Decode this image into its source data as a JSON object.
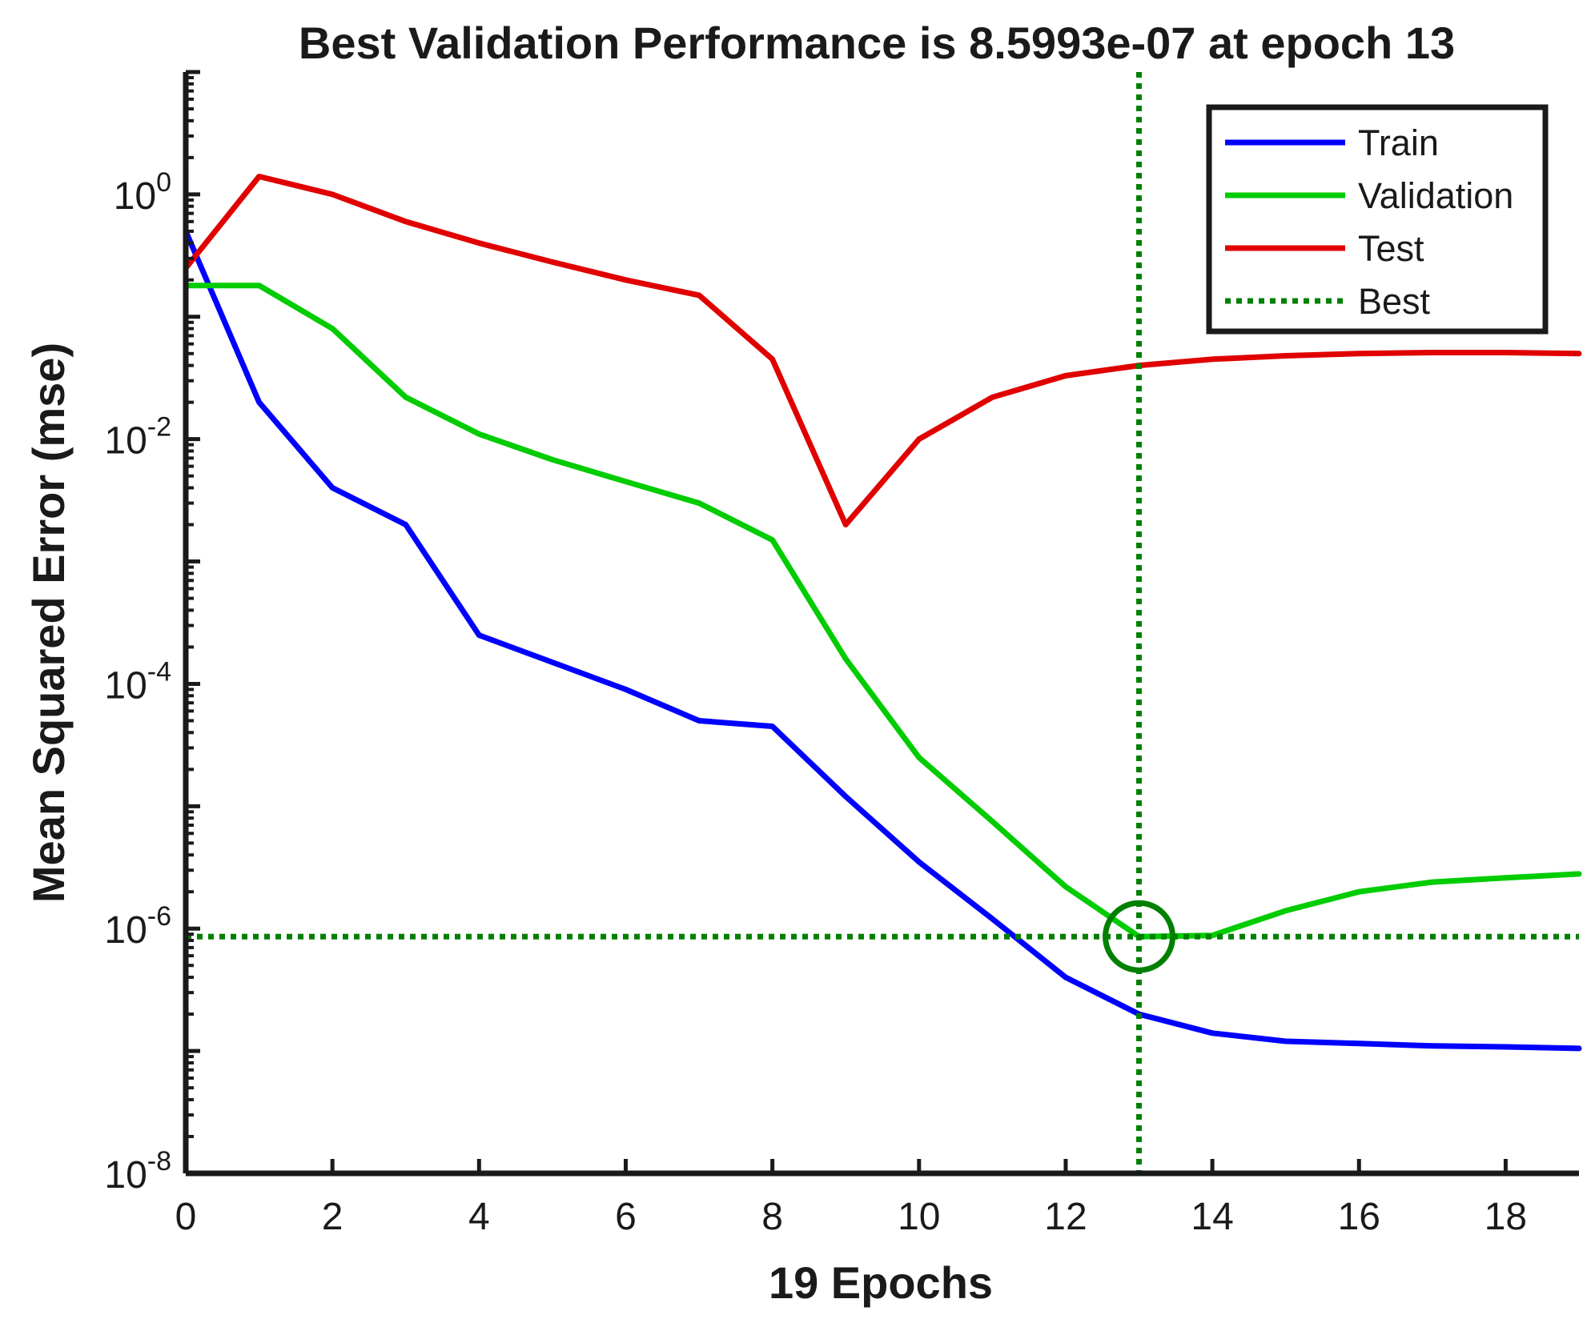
{
  "chart_data": {
    "type": "line",
    "title": "Best Validation Performance is 8.5993e-07 at epoch 13",
    "xlabel": "19 Epochs",
    "ylabel": "Mean Squared Error  (mse)",
    "yscale": "log",
    "xlim": [
      0,
      19
    ],
    "ylim": [
      1e-08,
      10
    ],
    "x_ticks": [
      0,
      2,
      4,
      6,
      8,
      10,
      12,
      14,
      16,
      18
    ],
    "y_ticks": [
      {
        "base": "10",
        "exp": "0"
      },
      {
        "base": "10",
        "exp": "-2"
      },
      {
        "base": "10",
        "exp": "-4"
      },
      {
        "base": "10",
        "exp": "-6"
      },
      {
        "base": "10",
        "exp": "-8"
      }
    ],
    "x": [
      0,
      1,
      2,
      3,
      4,
      5,
      6,
      7,
      8,
      9,
      10,
      11,
      12,
      13,
      14,
      15,
      16,
      17,
      18,
      19
    ],
    "series": [
      {
        "name": "Train",
        "color": "#0000ff",
        "values": [
          0.5,
          0.02,
          0.004,
          0.002,
          0.00025,
          0.00015,
          9e-05,
          5e-05,
          4.5e-05,
          1.2e-05,
          3.5e-06,
          1.2e-06,
          4e-07,
          2e-07,
          1.4e-07,
          1.2e-07,
          1.15e-07,
          1.1e-07,
          1.08e-07,
          1.05e-07
        ]
      },
      {
        "name": "Validation",
        "color": "#00cc00",
        "values": [
          0.18,
          0.18,
          0.08,
          0.022,
          0.011,
          0.0068,
          0.0045,
          0.003,
          0.0015,
          0.00016,
          2.5e-05,
          7.5e-06,
          2.2e-06,
          8.6e-07,
          8.8e-07,
          1.4e-06,
          2e-06,
          2.4e-06,
          2.6e-06,
          2.8e-06
        ]
      },
      {
        "name": "Test",
        "color": "#e00000",
        "values": [
          0.25,
          1.4,
          1.0,
          0.6,
          0.4,
          0.28,
          0.2,
          0.15,
          0.045,
          0.002,
          0.01,
          0.022,
          0.033,
          0.04,
          0.045,
          0.048,
          0.05,
          0.051,
          0.051,
          0.05
        ]
      }
    ],
    "best": {
      "name": "Best",
      "epoch": 13,
      "value": 8.5993e-07,
      "color": "#008000",
      "style": "dotted"
    },
    "legend": {
      "position": "top-right",
      "entries": [
        "Train",
        "Validation",
        "Test",
        "Best"
      ]
    },
    "grid": false
  }
}
